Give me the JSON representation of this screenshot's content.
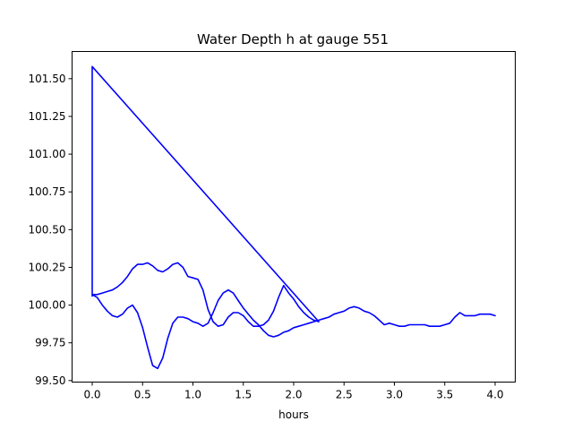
{
  "chart_data": {
    "type": "line",
    "title": "Water Depth h at gauge 551",
    "xlabel": "hours",
    "ylabel": "",
    "xlim": [
      -0.2,
      4.2
    ],
    "ylim": [
      99.49,
      101.68
    ],
    "xticks": [
      0.0,
      0.5,
      1.0,
      1.5,
      2.0,
      2.5,
      3.0,
      3.5,
      4.0
    ],
    "xtick_labels": [
      "0.0",
      "0.5",
      "1.0",
      "1.5",
      "2.0",
      "2.5",
      "3.0",
      "3.5",
      "4.0"
    ],
    "yticks": [
      99.5,
      99.75,
      100.0,
      100.25,
      100.5,
      100.75,
      101.0,
      101.25,
      101.5
    ],
    "ytick_labels": [
      "99.50",
      "99.75",
      "100.00",
      "100.25",
      "100.50",
      "100.75",
      "101.00",
      "101.25",
      "101.50"
    ],
    "grid": false,
    "series": [
      {
        "color": "#0000ff",
        "x": [
          0.0,
          0.0,
          0.0,
          0.05,
          0.1,
          0.15,
          0.2,
          0.25,
          0.3,
          0.35,
          0.4,
          0.45,
          0.5,
          0.55,
          0.6,
          0.65,
          0.7,
          0.75,
          0.8,
          0.85,
          0.9,
          0.95,
          1.0,
          1.05,
          1.1,
          1.15,
          1.2,
          1.25,
          1.3,
          1.35,
          1.4,
          1.45,
          1.5,
          1.55,
          1.6,
          1.65,
          1.7,
          1.75,
          1.8,
          1.85,
          1.9,
          1.93,
          1.95,
          2.0,
          2.05,
          2.1,
          2.15,
          2.2,
          2.25,
          0.0,
          0.0,
          0.05,
          0.1,
          0.15,
          0.2,
          0.25,
          0.3,
          0.35,
          0.4,
          0.45,
          0.5,
          0.55,
          0.6,
          0.65,
          0.7,
          0.75,
          0.8,
          0.85,
          0.9,
          0.95,
          1.0,
          1.05,
          1.1,
          1.15,
          1.2,
          1.25,
          1.3,
          1.35,
          1.4,
          1.45,
          1.5,
          1.55,
          1.6,
          1.65,
          1.7,
          1.75,
          1.8,
          1.85,
          1.9,
          1.95,
          2.0,
          2.05,
          2.1,
          2.15,
          2.2,
          2.25,
          2.3,
          2.35,
          2.4,
          2.45,
          2.5,
          2.55,
          2.6,
          2.65,
          2.7,
          2.75,
          2.8,
          2.85,
          2.9,
          2.95,
          3.0,
          3.05,
          3.1,
          3.15,
          3.2,
          3.25,
          3.3,
          3.35,
          3.4,
          3.45,
          3.5,
          3.55,
          3.6,
          3.65,
          3.7,
          3.75,
          3.8,
          3.85,
          3.9,
          3.95,
          4.0
        ],
        "y": [
          100.06,
          101.58,
          100.07,
          100.07,
          100.08,
          100.09,
          100.1,
          100.12,
          100.15,
          100.19,
          100.24,
          100.27,
          100.27,
          100.28,
          100.26,
          100.23,
          100.22,
          100.24,
          100.27,
          100.28,
          100.25,
          100.19,
          100.18,
          100.17,
          100.1,
          99.97,
          99.89,
          99.86,
          99.87,
          99.92,
          99.95,
          99.95,
          99.93,
          99.89,
          99.86,
          99.86,
          99.87,
          99.9,
          99.96,
          100.05,
          100.13,
          100.1,
          100.08,
          100.04,
          99.99,
          99.95,
          99.92,
          99.9,
          99.89,
          101.58,
          100.07,
          100.05,
          100.0,
          99.96,
          99.93,
          99.92,
          99.94,
          99.98,
          100.0,
          99.95,
          99.85,
          99.72,
          99.6,
          99.58,
          99.65,
          99.78,
          99.88,
          99.92,
          99.92,
          99.91,
          99.89,
          99.88,
          99.86,
          99.88,
          99.95,
          100.03,
          100.08,
          100.1,
          100.08,
          100.03,
          99.98,
          99.94,
          99.9,
          99.87,
          99.83,
          99.8,
          99.79,
          99.8,
          99.82,
          99.83,
          99.85,
          99.86,
          99.87,
          99.88,
          99.89,
          99.9,
          99.91,
          99.92,
          99.94,
          99.95,
          99.96,
          99.98,
          99.99,
          99.98,
          99.96,
          99.95,
          99.93,
          99.9,
          99.87,
          99.88,
          99.87,
          99.86,
          99.86,
          99.87,
          99.87,
          99.87,
          99.87,
          99.86,
          99.86,
          99.86,
          99.87,
          99.88,
          99.92,
          99.95,
          99.93,
          99.93,
          99.93,
          99.94,
          99.94,
          99.94,
          99.93
        ]
      }
    ]
  }
}
